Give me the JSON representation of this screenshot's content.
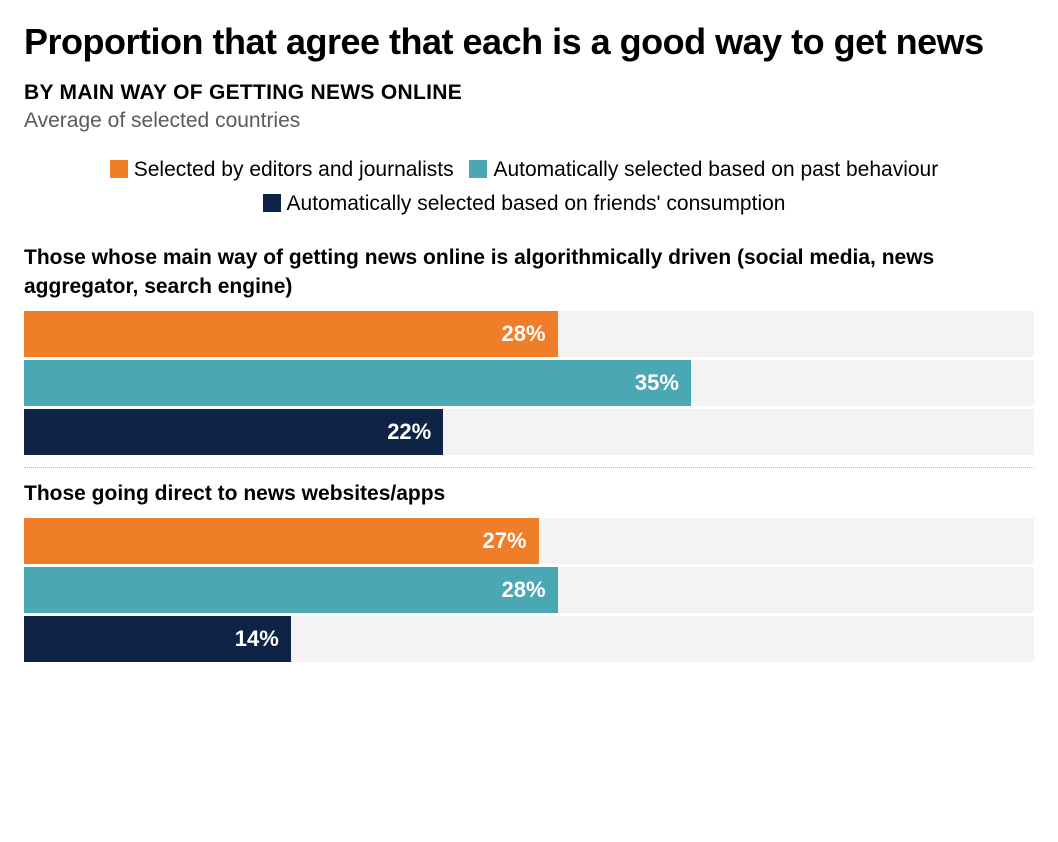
{
  "title": "Proportion that agree that each is a good way to get news",
  "subtitle": "BY MAIN WAY OF GETTING NEWS ONLINE",
  "note": "Average of selected countries",
  "xmax": 53,
  "colors": {
    "background": "#ffffff",
    "bar_track": "#f3f3f3",
    "text_muted": "#5a5a5a",
    "divider": "#bcbcbc"
  },
  "series": [
    {
      "key": "editors",
      "label": "Selected by editors and journalists",
      "color": "#f07d28"
    },
    {
      "key": "past_behaviour",
      "label": "Automatically selected based on past behaviour",
      "color": "#4aa8b5"
    },
    {
      "key": "friends_consumption",
      "label": "Automatically selected based on friends' consumption",
      "color": "#0f2346"
    }
  ],
  "groups": [
    {
      "title": "Those whose main way of getting news online is algorithmically driven (social media, news aggregator, search engine)",
      "bars": [
        {
          "series": "editors",
          "value": 28,
          "label": "28%"
        },
        {
          "series": "past_behaviour",
          "value": 35,
          "label": "35%"
        },
        {
          "series": "friends_consumption",
          "value": 22,
          "label": "22%"
        }
      ]
    },
    {
      "title": "Those going direct to news websites/apps",
      "bars": [
        {
          "series": "editors",
          "value": 27,
          "label": "27%"
        },
        {
          "series": "past_behaviour",
          "value": 28,
          "label": "28%"
        },
        {
          "series": "friends_consumption",
          "value": 14,
          "label": "14%"
        }
      ]
    }
  ]
}
